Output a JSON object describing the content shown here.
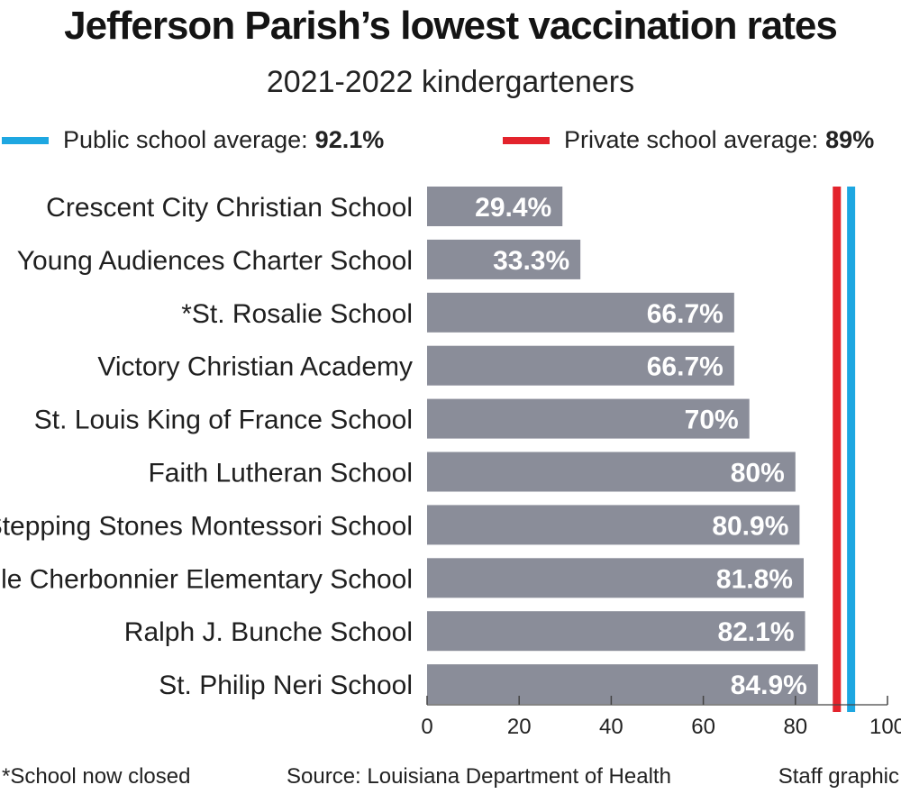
{
  "chart_data": {
    "type": "bar",
    "orientation": "horizontal",
    "title": "Jefferson Parish’s lowest vaccination rates",
    "subtitle": "2021-2022 kindergarteners",
    "categories": [
      "Crescent City Christian School",
      "Young Audiences Charter School",
      "*St. Rosalie School",
      "Victory Christian Academy",
      "St. Louis King of France School",
      "Faith Lutheran School",
      "Stepping Stones Montessori School",
      "Lucille Cherbonnier Elementary School",
      "Ralph J. Bunche School",
      "St. Philip Neri School"
    ],
    "values": [
      29.4,
      33.3,
      66.7,
      66.7,
      70,
      80,
      80.9,
      81.8,
      82.1,
      84.9
    ],
    "value_labels": [
      "29.4%",
      "33.3%",
      "66.7%",
      "66.7%",
      "70%",
      "80%",
      "80.9%",
      "81.8%",
      "82.1%",
      "84.9%"
    ],
    "xlim": [
      0,
      100
    ],
    "xticks": [
      0,
      20,
      40,
      60,
      80,
      100
    ],
    "grid": false,
    "bar_color": "#8a8d99",
    "reference_lines": [
      {
        "label": "Public school average:",
        "value_label": "92.1%",
        "value": 92.1,
        "color": "#1ea7e1"
      },
      {
        "label": "Private school average:",
        "value_label": "89%",
        "value": 89,
        "color": "#e3232c"
      }
    ]
  },
  "footer": {
    "note": "*School now closed",
    "source": "Source: Louisiana Department of Health",
    "credit": "Staff graphic"
  }
}
